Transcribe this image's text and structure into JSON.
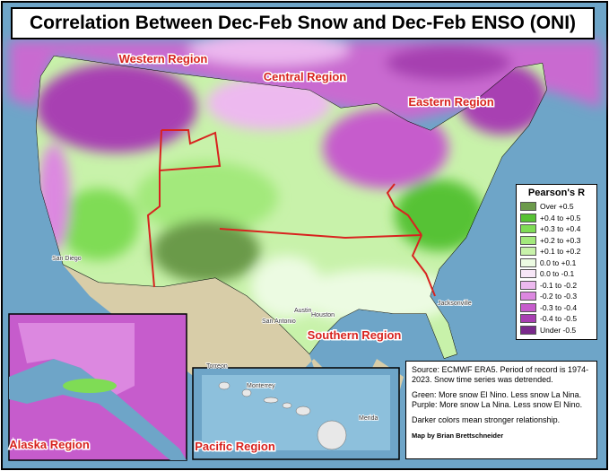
{
  "header": {
    "title": "Correlation Between Dec-Feb Snow and Dec-Feb ENSO (ONI)"
  },
  "regions": [
    {
      "label": "Western Region"
    },
    {
      "label": "Central Region"
    },
    {
      "label": "Eastern Region"
    },
    {
      "label": "Southern Region"
    },
    {
      "label": "Alaska Region"
    },
    {
      "label": "Pacific Region"
    }
  ],
  "places": [
    "San Diego",
    "Austin",
    "San Antonio",
    "Houston",
    "Jacksonville",
    "Torreon",
    "Monterrey",
    "Merida"
  ],
  "legend": {
    "title": "Pearson's R",
    "items": [
      {
        "label": "Over +0.5",
        "color": "#6b9a4a"
      },
      {
        "label": "+0.4 to +0.5",
        "color": "#57c234"
      },
      {
        "label": "+0.3 to +0.4",
        "color": "#7fdc55"
      },
      {
        "label": "+0.2 to +0.3",
        "color": "#a3e97c"
      },
      {
        "label": "+0.1 to +0.2",
        "color": "#c8f2aa"
      },
      {
        "label": "0.0 to +0.1",
        "color": "#ecfbe2"
      },
      {
        "label": "0.0 to -0.1",
        "color": "#f7e6f7"
      },
      {
        "label": "-0.1 to -0.2",
        "color": "#edb9ef"
      },
      {
        "label": "-0.2 to -0.3",
        "color": "#dc88e0"
      },
      {
        "label": "-0.3 to -0.4",
        "color": "#c65ccc"
      },
      {
        "label": "-0.4 to -0.5",
        "color": "#a83fb2"
      },
      {
        "label": "Under -0.5",
        "color": "#7a2a8c"
      }
    ]
  },
  "notes": {
    "source": "Source: ECMWF ERA5. Period of record is 1974-2023. Snow time series was detrended.",
    "green": "Green: More snow El Nino. Less snow La Nina.",
    "purple": "Purple: More snow La Nina. Less snow El Nino.",
    "darker": "Darker colors mean stronger relationship.",
    "credit": "Map by Brian Brettschneider"
  }
}
